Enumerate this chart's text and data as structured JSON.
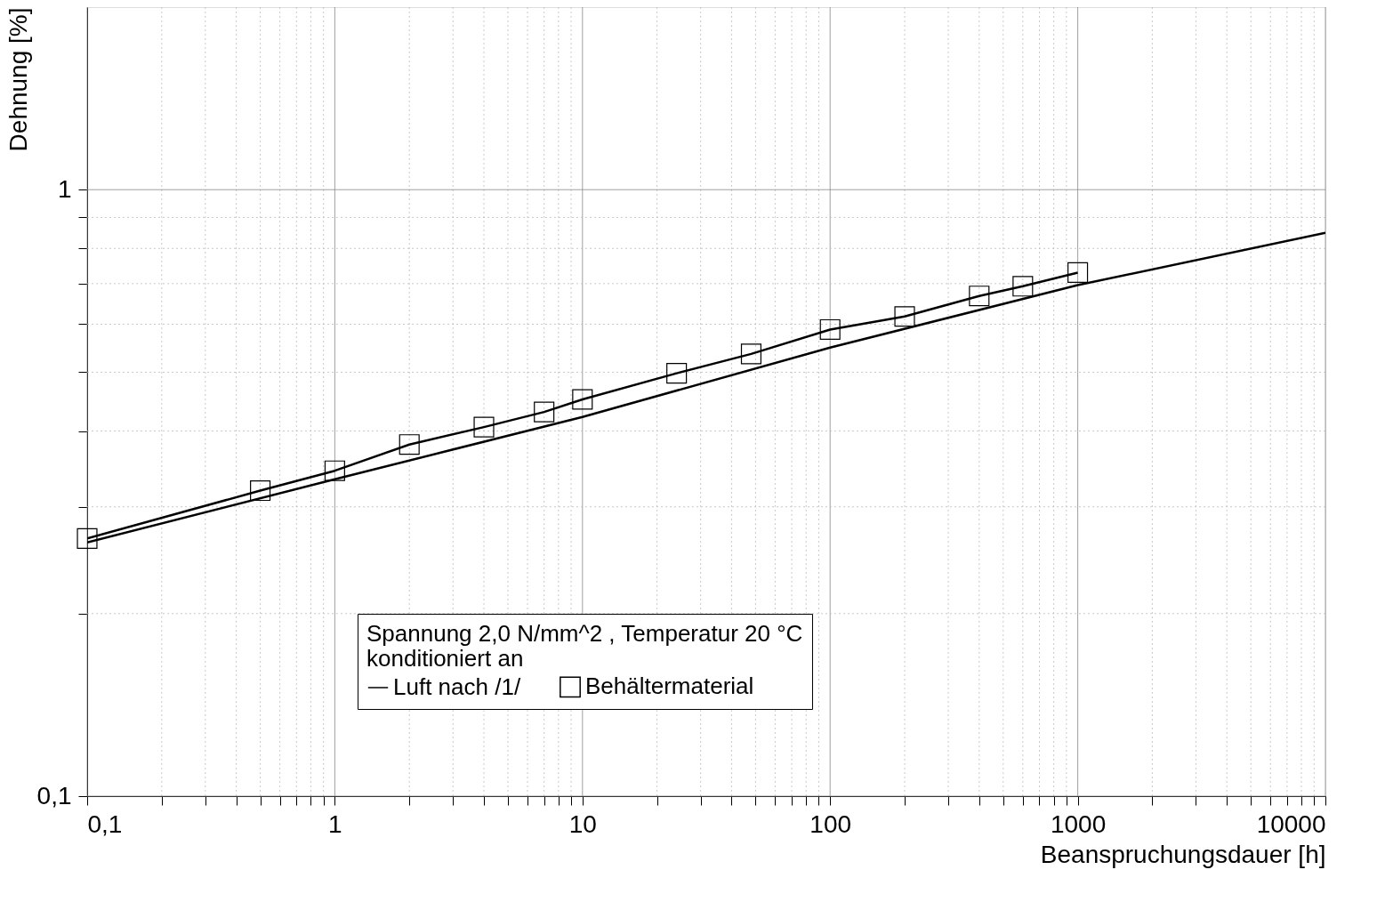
{
  "chart_data": {
    "type": "line",
    "xlabel": "Beanspruchungsdauer [h]",
    "ylabel": "Dehnung [%]",
    "legend_title": "Spannung 2,0 N/mm^2 , Temperatur 20 °C\nkonditioniert an",
    "log": "xy",
    "grid": true,
    "legend": "bottom",
    "line_style": "solid",
    "xlim": [
      0.1,
      10000
    ],
    "ylim": [
      0.1,
      2
    ],
    "xticks": [
      {
        "value": 0.1,
        "label": "0,1"
      },
      {
        "value": 0.2,
        "label": null
      },
      {
        "value": 0.3,
        "label": null
      },
      {
        "value": 0.4,
        "label": null
      },
      {
        "value": 0.5,
        "label": null
      },
      {
        "value": 0.6,
        "label": null
      },
      {
        "value": 0.7,
        "label": null
      },
      {
        "value": 0.8,
        "label": null
      },
      {
        "value": 0.9,
        "label": null
      },
      1,
      {
        "value": 2,
        "label": null
      },
      {
        "value": 3,
        "label": null
      },
      {
        "value": 4,
        "label": null
      },
      {
        "value": 5,
        "label": null
      },
      {
        "value": 6,
        "label": null
      },
      {
        "value": 7,
        "label": null
      },
      {
        "value": 8,
        "label": null
      },
      {
        "value": 9,
        "label": null
      },
      10,
      {
        "value": 20,
        "label": null
      },
      {
        "value": 30,
        "label": null
      },
      {
        "value": 40,
        "label": null
      },
      {
        "value": 50,
        "label": null
      },
      {
        "value": 60,
        "label": null
      },
      {
        "value": 70,
        "label": null
      },
      {
        "value": 80,
        "label": null
      },
      {
        "value": 90,
        "label": null
      },
      100,
      {
        "value": 200,
        "label": null
      },
      {
        "value": 300,
        "label": null
      },
      {
        "value": 400,
        "label": null
      },
      {
        "value": 500,
        "label": null
      },
      {
        "value": 600,
        "label": null
      },
      {
        "value": 700,
        "label": null
      },
      {
        "value": 800,
        "label": null
      },
      {
        "value": 900,
        "label": null
      },
      1000,
      {
        "value": 2000,
        "label": null
      },
      {
        "value": 3000,
        "label": null
      },
      {
        "value": 4000,
        "label": null
      },
      {
        "value": 5000,
        "label": null
      },
      {
        "value": 6000,
        "label": null
      },
      {
        "value": 7000,
        "label": null
      },
      {
        "value": 8000,
        "label": null
      },
      {
        "value": 9000,
        "label": null
      },
      10000
    ],
    "yticks": [
      {
        "value": 0.1,
        "label": "0,1"
      },
      {
        "value": 0.2,
        "label": null
      },
      {
        "value": 0.3,
        "label": null
      },
      {
        "value": 0.4,
        "label": null
      },
      {
        "value": 0.5,
        "label": null
      },
      {
        "value": 0.6,
        "label": null
      },
      {
        "value": 0.7,
        "label": null
      },
      {
        "value": 0.8,
        "label": null
      },
      {
        "value": 0.9,
        "label": null
      },
      1
    ],
    "series": [
      {
        "name": "Luft nach /1/",
        "color": "#000000",
        "marker": "none",
        "x": [
          0.1,
          1,
          10,
          100,
          1000,
          10000
        ],
        "values": [
          0.262,
          0.333,
          0.422,
          0.549,
          0.696,
          0.849
        ]
      },
      {
        "name": "Behältermaterial",
        "color": "#000000",
        "marker": "square",
        "x": [
          0.1,
          0.5,
          1,
          2,
          4,
          7,
          10,
          24,
          48,
          100,
          200,
          400,
          600,
          1000
        ],
        "values": [
          0.266,
          0.319,
          0.344,
          0.38,
          0.406,
          0.43,
          0.451,
          0.498,
          0.536,
          0.588,
          0.618,
          0.668,
          0.693,
          0.73
        ]
      }
    ]
  }
}
